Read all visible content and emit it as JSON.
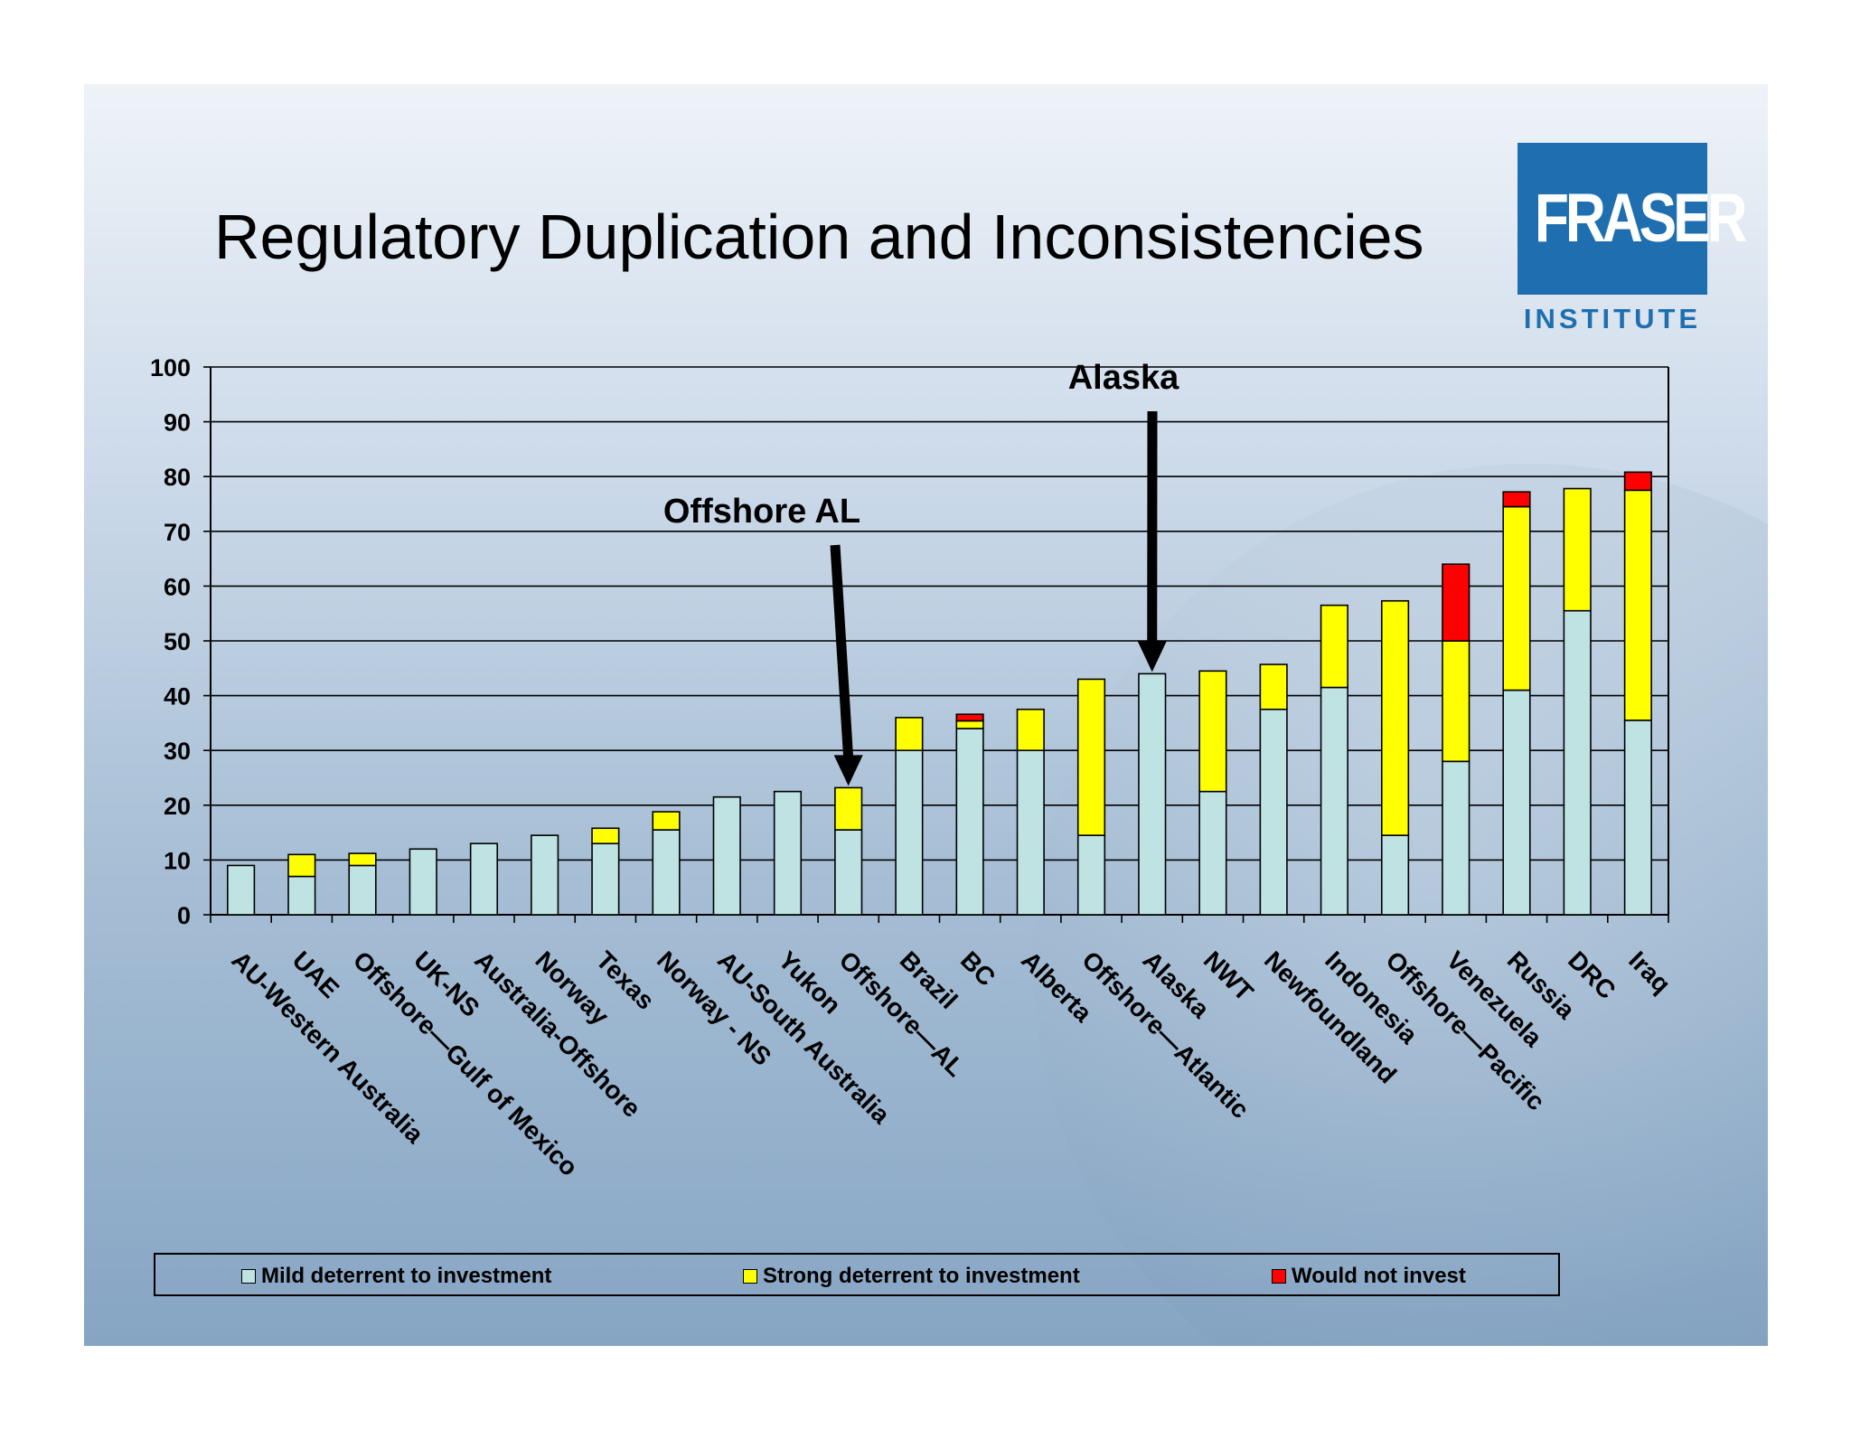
{
  "slide": {
    "title": "Regulatory Duplication and Inconsistencies"
  },
  "logo": {
    "name": "FRASER",
    "sub": "INSTITUTE",
    "color": "#1f6fb0"
  },
  "chart_data": {
    "type": "bar",
    "stacked": true,
    "title": "",
    "xlabel": "",
    "ylabel": "",
    "ylim": [
      0,
      100
    ],
    "yticks": [
      0,
      10,
      20,
      30,
      40,
      50,
      60,
      70,
      80,
      90,
      100
    ],
    "grid": true,
    "categories": [
      "AU-Western Australia",
      "UAE",
      "Offshore—Gulf of Mexico",
      "UK-NS",
      "Australia-Offshore",
      "Norway",
      "Texas",
      "Norway - NS",
      "AU-South Australia",
      "Yukon",
      "Offshore—AL",
      "Brazil",
      "BC",
      "Alberta",
      "Offshore—Atlantic",
      "Alaska",
      "NWT",
      "Newfoundland",
      "Indonesia",
      "Offshore—Pacific",
      "Venezuela",
      "Russia",
      "DRC",
      "Iraq"
    ],
    "series": [
      {
        "name": "Mild deterrent to investment",
        "color": "#bfe3e3",
        "values": [
          9,
          7,
          9,
          12,
          13,
          14.5,
          13,
          15.5,
          21.5,
          22.5,
          15.5,
          30,
          34,
          30,
          14.5,
          44,
          22.5,
          37.5,
          41.5,
          14.5,
          28,
          41,
          55.5,
          35.5
        ]
      },
      {
        "name": "Strong deterrent to investment",
        "color": "#ffff00",
        "values": [
          0,
          4,
          2.2,
          0,
          0,
          0,
          2.8,
          3.3,
          0,
          0,
          7.7,
          6,
          1.4,
          7.5,
          28.5,
          0,
          22,
          8.2,
          15,
          42.8,
          22,
          33.5,
          22.3,
          42
        ]
      },
      {
        "name": "Would not invest",
        "color": "#ff0000",
        "values": [
          0,
          0,
          0,
          0,
          0,
          0,
          0,
          0,
          0,
          0,
          0,
          0,
          1.2,
          0,
          0,
          0,
          0,
          0,
          0,
          0,
          14,
          2.7,
          0,
          3.3
        ]
      }
    ],
    "annotations": [
      {
        "text": "Offshore AL",
        "category": "Offshore—AL"
      },
      {
        "text": "Alaska",
        "category": "Alaska"
      }
    ],
    "legend": "bottom"
  }
}
